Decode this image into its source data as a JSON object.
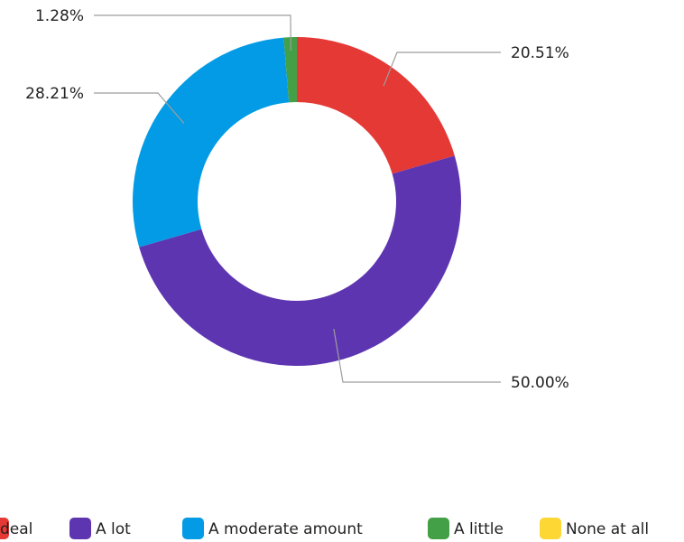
{
  "chart_data": {
    "type": "pie",
    "donut": true,
    "categories": [
      "A great deal",
      "A lot",
      "A moderate amount",
      "A little",
      "None at all"
    ],
    "values": [
      20.51,
      50.0,
      28.21,
      1.28,
      0
    ],
    "labels": [
      "20.51%",
      "50.00%",
      "28.21%",
      "1.28%",
      ""
    ],
    "colors": [
      "#e53935",
      "#5e35b1",
      "#039be5",
      "#43a047",
      "#fdd835"
    ],
    "legend_position": "bottom",
    "legend_visible_text": [
      "deal",
      "A lot",
      "A moderate amount",
      "A little",
      "None at all"
    ],
    "start_angle": "top",
    "direction": "clockwise"
  }
}
